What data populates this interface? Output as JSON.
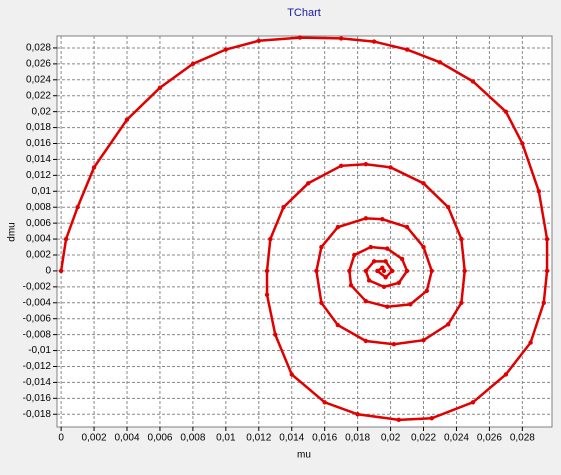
{
  "chart_data": {
    "type": "scatter",
    "title": "TChart",
    "x_label": "mu",
    "y_label": "dmu",
    "series": [
      {
        "color": "#e00000",
        "x": [
          0,
          0.0003,
          0.001,
          0.002,
          0.004,
          0.006,
          0.008,
          0.01,
          0.012,
          0.0145,
          0.017,
          0.019,
          0.021,
          0.023,
          0.025,
          0.027,
          0.028,
          0.029,
          0.0295,
          0.0295,
          0.0293,
          0.0285,
          0.027,
          0.025,
          0.0225,
          0.0205,
          0.018,
          0.016,
          0.014,
          0.013,
          0.0125,
          0.0125,
          0.0127,
          0.0135,
          0.015,
          0.017,
          0.0185,
          0.02,
          0.022,
          0.0235,
          0.0243,
          0.0245,
          0.0243,
          0.0235,
          0.022,
          0.0202,
          0.0185,
          0.0168,
          0.0158,
          0.0155,
          0.0158,
          0.0168,
          0.0185,
          0.0195,
          0.021,
          0.022,
          0.0225,
          0.0222,
          0.0212,
          0.0198,
          0.0185,
          0.0176,
          0.0175,
          0.0178,
          0.0188,
          0.0198,
          0.0207,
          0.021,
          0.0205,
          0.0196,
          0.0187,
          0.0185,
          0.019,
          0.0197,
          0.0201,
          0.0197,
          0.0192,
          0.0195,
          0.0196
        ],
        "y": [
          0,
          0.004,
          0.008,
          0.013,
          0.019,
          0.023,
          0.026,
          0.0278,
          0.0289,
          0.0293,
          0.0292,
          0.0288,
          0.0278,
          0.0262,
          0.0238,
          0.02,
          0.016,
          0.01,
          0.004,
          0,
          -0.004,
          -0.009,
          -0.013,
          -0.0165,
          -0.0185,
          -0.0187,
          -0.018,
          -0.0165,
          -0.013,
          -0.008,
          -0.003,
          0,
          0.004,
          0.008,
          0.011,
          0.0132,
          0.0134,
          0.013,
          0.011,
          0.008,
          0.004,
          0,
          -0.004,
          -0.0067,
          -0.0087,
          -0.0092,
          -0.0088,
          -0.0068,
          -0.004,
          0,
          0.003,
          0.0055,
          0.0066,
          0.0065,
          0.0055,
          0.003,
          0,
          -0.0025,
          -0.0042,
          -0.0045,
          -0.0038,
          -0.0018,
          0,
          0.002,
          0.003,
          0.0028,
          0.0015,
          0,
          -0.0015,
          -0.002,
          -0.0012,
          0,
          0.0012,
          0.0012,
          0,
          -0.0008,
          0,
          0.0004,
          0
        ]
      }
    ],
    "xlim": [
      -0.00025,
      0.0298
    ],
    "ylim": [
      -0.0196,
      0.0295
    ],
    "grid": true,
    "xticks": [
      0,
      {
        "value": 0.002,
        "label": "0,002"
      },
      {
        "value": 0.004,
        "label": "0,004"
      },
      {
        "value": 0.006,
        "label": "0,006"
      },
      {
        "value": 0.008,
        "label": "0,008"
      },
      {
        "value": 0.01,
        "label": "0,01"
      },
      {
        "value": 0.012,
        "label": "0,012"
      },
      {
        "value": 0.014,
        "label": "0,014"
      },
      {
        "value": 0.016,
        "label": "0,016"
      },
      {
        "value": 0.018,
        "label": "0,018"
      },
      {
        "value": 0.02,
        "label": "0,02"
      },
      {
        "value": 0.022,
        "label": "0,022"
      },
      {
        "value": 0.024,
        "label": "0,024"
      },
      {
        "value": 0.026,
        "label": "0,026"
      },
      {
        "value": 0.028,
        "label": "0,028"
      }
    ],
    "yticks": [
      {
        "value": -0.018,
        "label": "-0,018"
      },
      {
        "value": -0.016,
        "label": "-0,016"
      },
      {
        "value": -0.014,
        "label": "-0,014"
      },
      {
        "value": -0.012,
        "label": "-0,012"
      },
      {
        "value": -0.01,
        "label": "-0,01"
      },
      {
        "value": -0.008,
        "label": "-0,008"
      },
      {
        "value": -0.006,
        "label": "-0,006"
      },
      {
        "value": -0.004,
        "label": "-0,004"
      },
      {
        "value": -0.002,
        "label": "-0,002"
      },
      0,
      {
        "value": 0.002,
        "label": "0,002"
      },
      {
        "value": 0.004,
        "label": "0,004"
      },
      {
        "value": 0.006,
        "label": "0,006"
      },
      {
        "value": 0.008,
        "label": "0,008"
      },
      {
        "value": 0.01,
        "label": "0,01"
      },
      {
        "value": 0.012,
        "label": "0,012"
      },
      {
        "value": 0.014,
        "label": "0,014"
      },
      {
        "value": 0.016,
        "label": "0,016"
      },
      {
        "value": 0.018,
        "label": "0,018"
      },
      {
        "value": 0.02,
        "label": "0,02"
      },
      {
        "value": 0.022,
        "label": "0,022"
      },
      {
        "value": 0.024,
        "label": "0,024"
      },
      {
        "value": 0.026,
        "label": "0,026"
      },
      {
        "value": 0.028,
        "label": "0,028"
      }
    ]
  }
}
